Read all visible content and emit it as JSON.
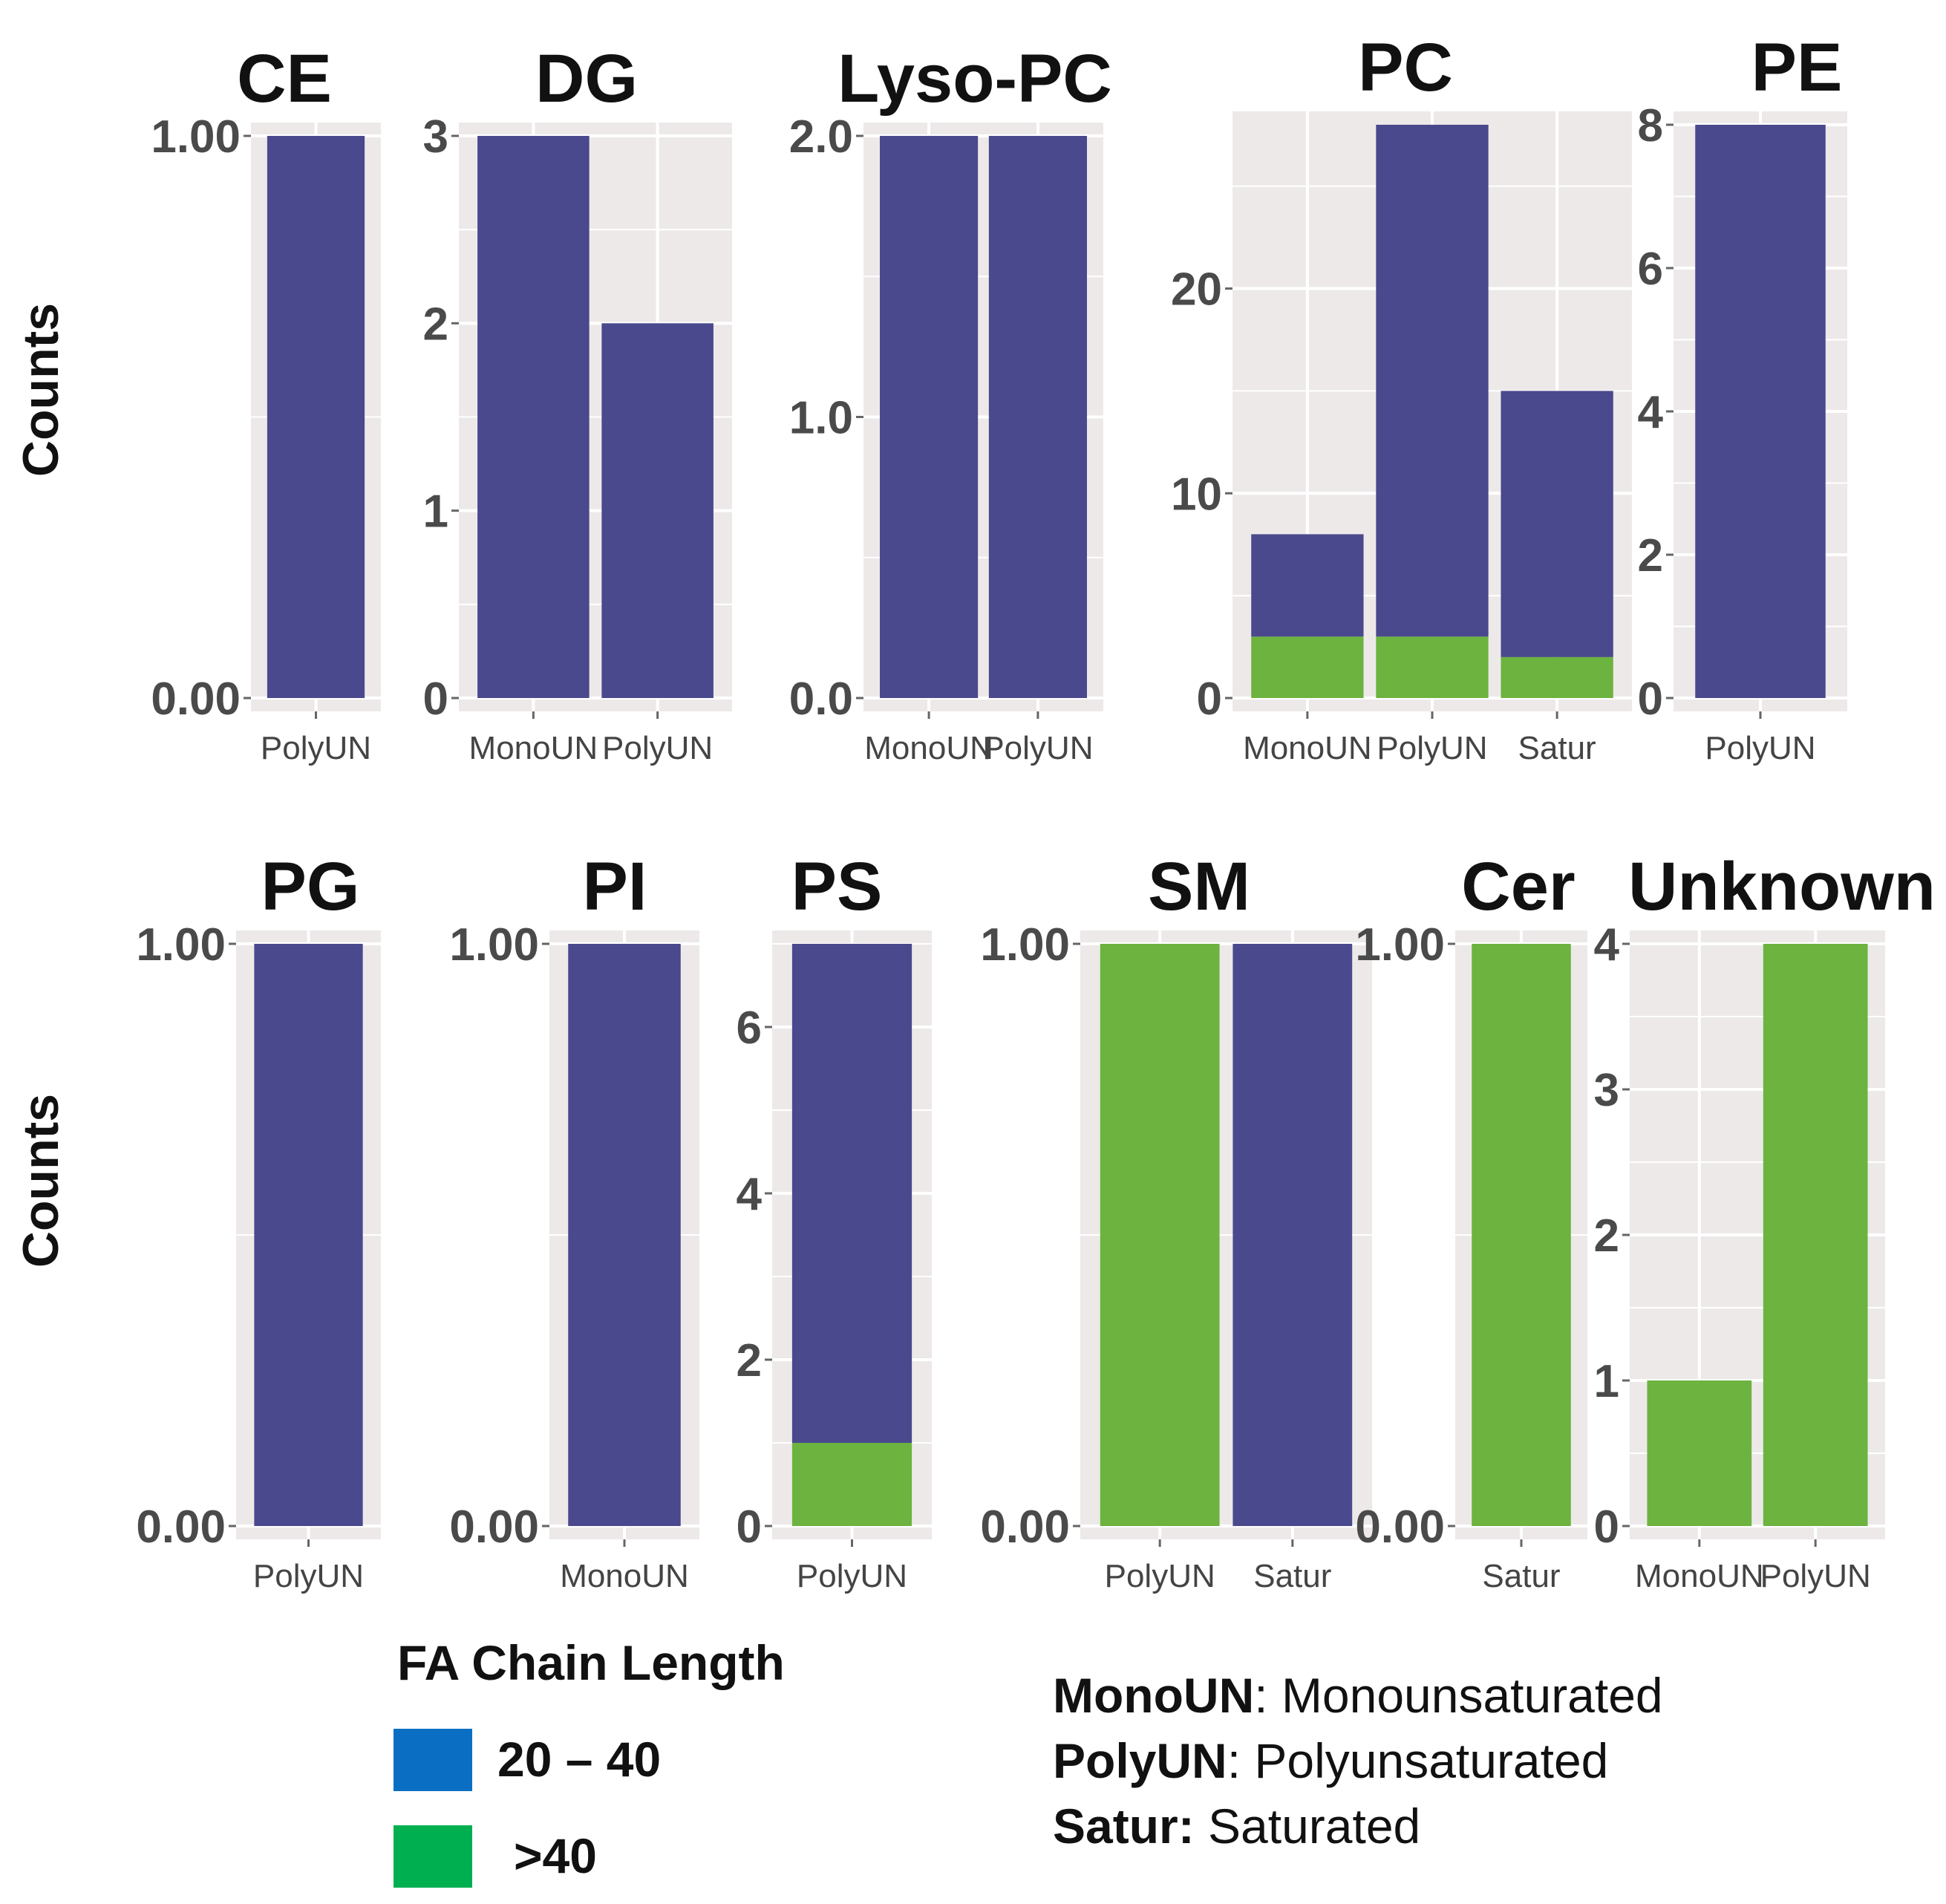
{
  "colors": {
    "short": "#4a498d",
    "long": "#6cb33f",
    "panel_bg": "#ede9e9",
    "legend_short": "#0a6fc2",
    "legend_long": "#00b050"
  },
  "y_label": "Counts",
  "chart_data": [
    {
      "type": "bar",
      "title": "CE",
      "categories": [
        "PolyUN"
      ],
      "ticks": [
        "1.00",
        "0.00"
      ],
      "ylim": [
        0,
        1
      ],
      "series": [
        {
          "name": "20 – 40",
          "values": [
            1
          ]
        },
        {
          "name": ">40",
          "values": [
            0
          ]
        }
      ]
    },
    {
      "type": "bar",
      "title": "DG",
      "categories": [
        "MonoUN",
        "PolyUN"
      ],
      "ticks": [
        "3",
        "2",
        "1",
        "0"
      ],
      "ylim": [
        0,
        3
      ],
      "series": [
        {
          "name": "20 – 40",
          "values": [
            3,
            2
          ]
        },
        {
          "name": ">40",
          "values": [
            0,
            0
          ]
        }
      ]
    },
    {
      "type": "bar",
      "title": "Lyso-PC",
      "categories": [
        "MonoUN",
        "PolyUN"
      ],
      "ticks": [
        "2.0",
        "1.0",
        "0.0"
      ],
      "ylim": [
        0,
        2
      ],
      "series": [
        {
          "name": "20 – 40",
          "values": [
            2,
            2
          ]
        },
        {
          "name": ">40",
          "values": [
            0,
            0
          ]
        }
      ]
    },
    {
      "type": "bar",
      "title": "PC",
      "categories": [
        "MonoUN",
        "PolyUN",
        "Satur"
      ],
      "ticks": [
        "20",
        "10",
        "0"
      ],
      "ylim": [
        0,
        28
      ],
      "series": [
        {
          "name": "20 – 40",
          "values": [
            5,
            25,
            13
          ]
        },
        {
          "name": ">40",
          "values": [
            3,
            3,
            2
          ]
        }
      ]
    },
    {
      "type": "bar",
      "title": "PE",
      "categories": [
        "PolyUN"
      ],
      "ticks": [
        "8",
        "6",
        "4",
        "2",
        "0"
      ],
      "ylim": [
        0,
        8
      ],
      "series": [
        {
          "name": "20 – 40",
          "values": [
            8
          ]
        },
        {
          "name": ">40",
          "values": [
            0
          ]
        }
      ]
    },
    {
      "type": "bar",
      "title": "PG",
      "categories": [
        "PolyUN"
      ],
      "ticks": [
        "1.00",
        "0.00"
      ],
      "ylim": [
        0,
        1
      ],
      "series": [
        {
          "name": "20 – 40",
          "values": [
            1
          ]
        },
        {
          "name": ">40",
          "values": [
            0
          ]
        }
      ]
    },
    {
      "type": "bar",
      "title": "PI",
      "categories": [
        "MonoUN"
      ],
      "ticks": [
        "1.00",
        "0.00"
      ],
      "ylim": [
        0,
        1
      ],
      "series": [
        {
          "name": "20 – 40",
          "values": [
            1
          ]
        },
        {
          "name": ">40",
          "values": [
            0
          ]
        }
      ]
    },
    {
      "type": "bar",
      "title": "PS",
      "categories": [
        "PolyUN"
      ],
      "ticks": [
        "6",
        "4",
        "2",
        "0"
      ],
      "ylim": [
        0,
        7
      ],
      "series": [
        {
          "name": "20 – 40",
          "values": [
            6
          ]
        },
        {
          "name": ">40",
          "values": [
            1
          ]
        }
      ]
    },
    {
      "type": "bar",
      "title": "SM",
      "categories": [
        "PolyUN",
        "Satur"
      ],
      "ticks": [
        "1.00",
        "0.00"
      ],
      "ylim": [
        0,
        1
      ],
      "series": [
        {
          "name": "20 – 40",
          "values": [
            0,
            1
          ]
        },
        {
          "name": ">40",
          "values": [
            1,
            0
          ]
        }
      ]
    },
    {
      "type": "bar",
      "title": "Cer",
      "categories": [
        "Satur"
      ],
      "ticks": [
        "1.00",
        "0.00"
      ],
      "ylim": [
        0,
        1
      ],
      "series": [
        {
          "name": "20 – 40",
          "values": [
            0
          ]
        },
        {
          "name": ">40",
          "values": [
            1
          ]
        }
      ]
    },
    {
      "type": "bar",
      "title": "Unknown",
      "categories": [
        "MonoUN",
        "PolyUN"
      ],
      "ticks": [
        "4",
        "3",
        "2",
        "1",
        "0"
      ],
      "ylim": [
        0,
        4
      ],
      "series": [
        {
          "name": "20 – 40",
          "values": [
            0,
            0
          ]
        },
        {
          "name": ">40",
          "values": [
            1,
            4
          ]
        }
      ]
    }
  ],
  "legend": {
    "title": "FA Chain Length",
    "items": [
      {
        "label": "20 – 40",
        "color": "#0a6fc2"
      },
      {
        "label": ">40",
        "color": "#00b050"
      }
    ]
  },
  "abbreviations": [
    {
      "key": "MonoUN",
      "value": ": Monounsaturated"
    },
    {
      "key": "PolyUN",
      "value": ": Polyunsaturated"
    },
    {
      "key": "Satur:",
      "value": " Saturated"
    }
  ]
}
